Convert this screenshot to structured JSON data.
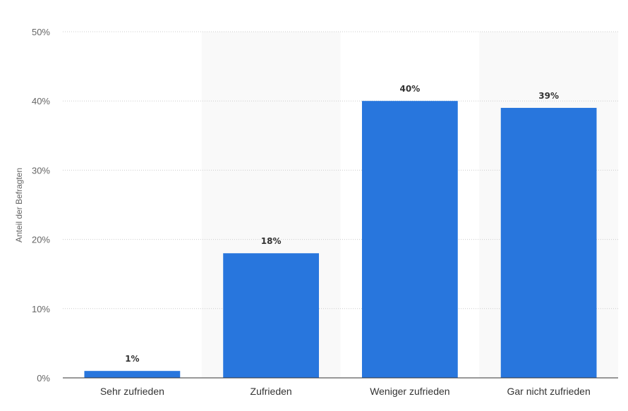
{
  "chart_data": {
    "type": "bar",
    "title": "",
    "xlabel": "",
    "ylabel": "Anteil der Befragten",
    "categories": [
      "Sehr zufrieden",
      "Zufrieden",
      "Weniger zufrieden",
      "Gar nicht zufrieden"
    ],
    "values": [
      1,
      18,
      40,
      39
    ],
    "value_labels": [
      "1%",
      "18%",
      "40%",
      "39%"
    ],
    "ylim": [
      0,
      50
    ],
    "yticks": [
      0,
      10,
      20,
      30,
      40,
      50
    ],
    "ytick_labels": [
      "0%",
      "10%",
      "20%",
      "30%",
      "40%",
      "50%"
    ],
    "grid": true,
    "grid_style": "dotted",
    "alternating_band_color": "#f9f9f9",
    "bar_color": "#2876dd",
    "legend": "none"
  }
}
